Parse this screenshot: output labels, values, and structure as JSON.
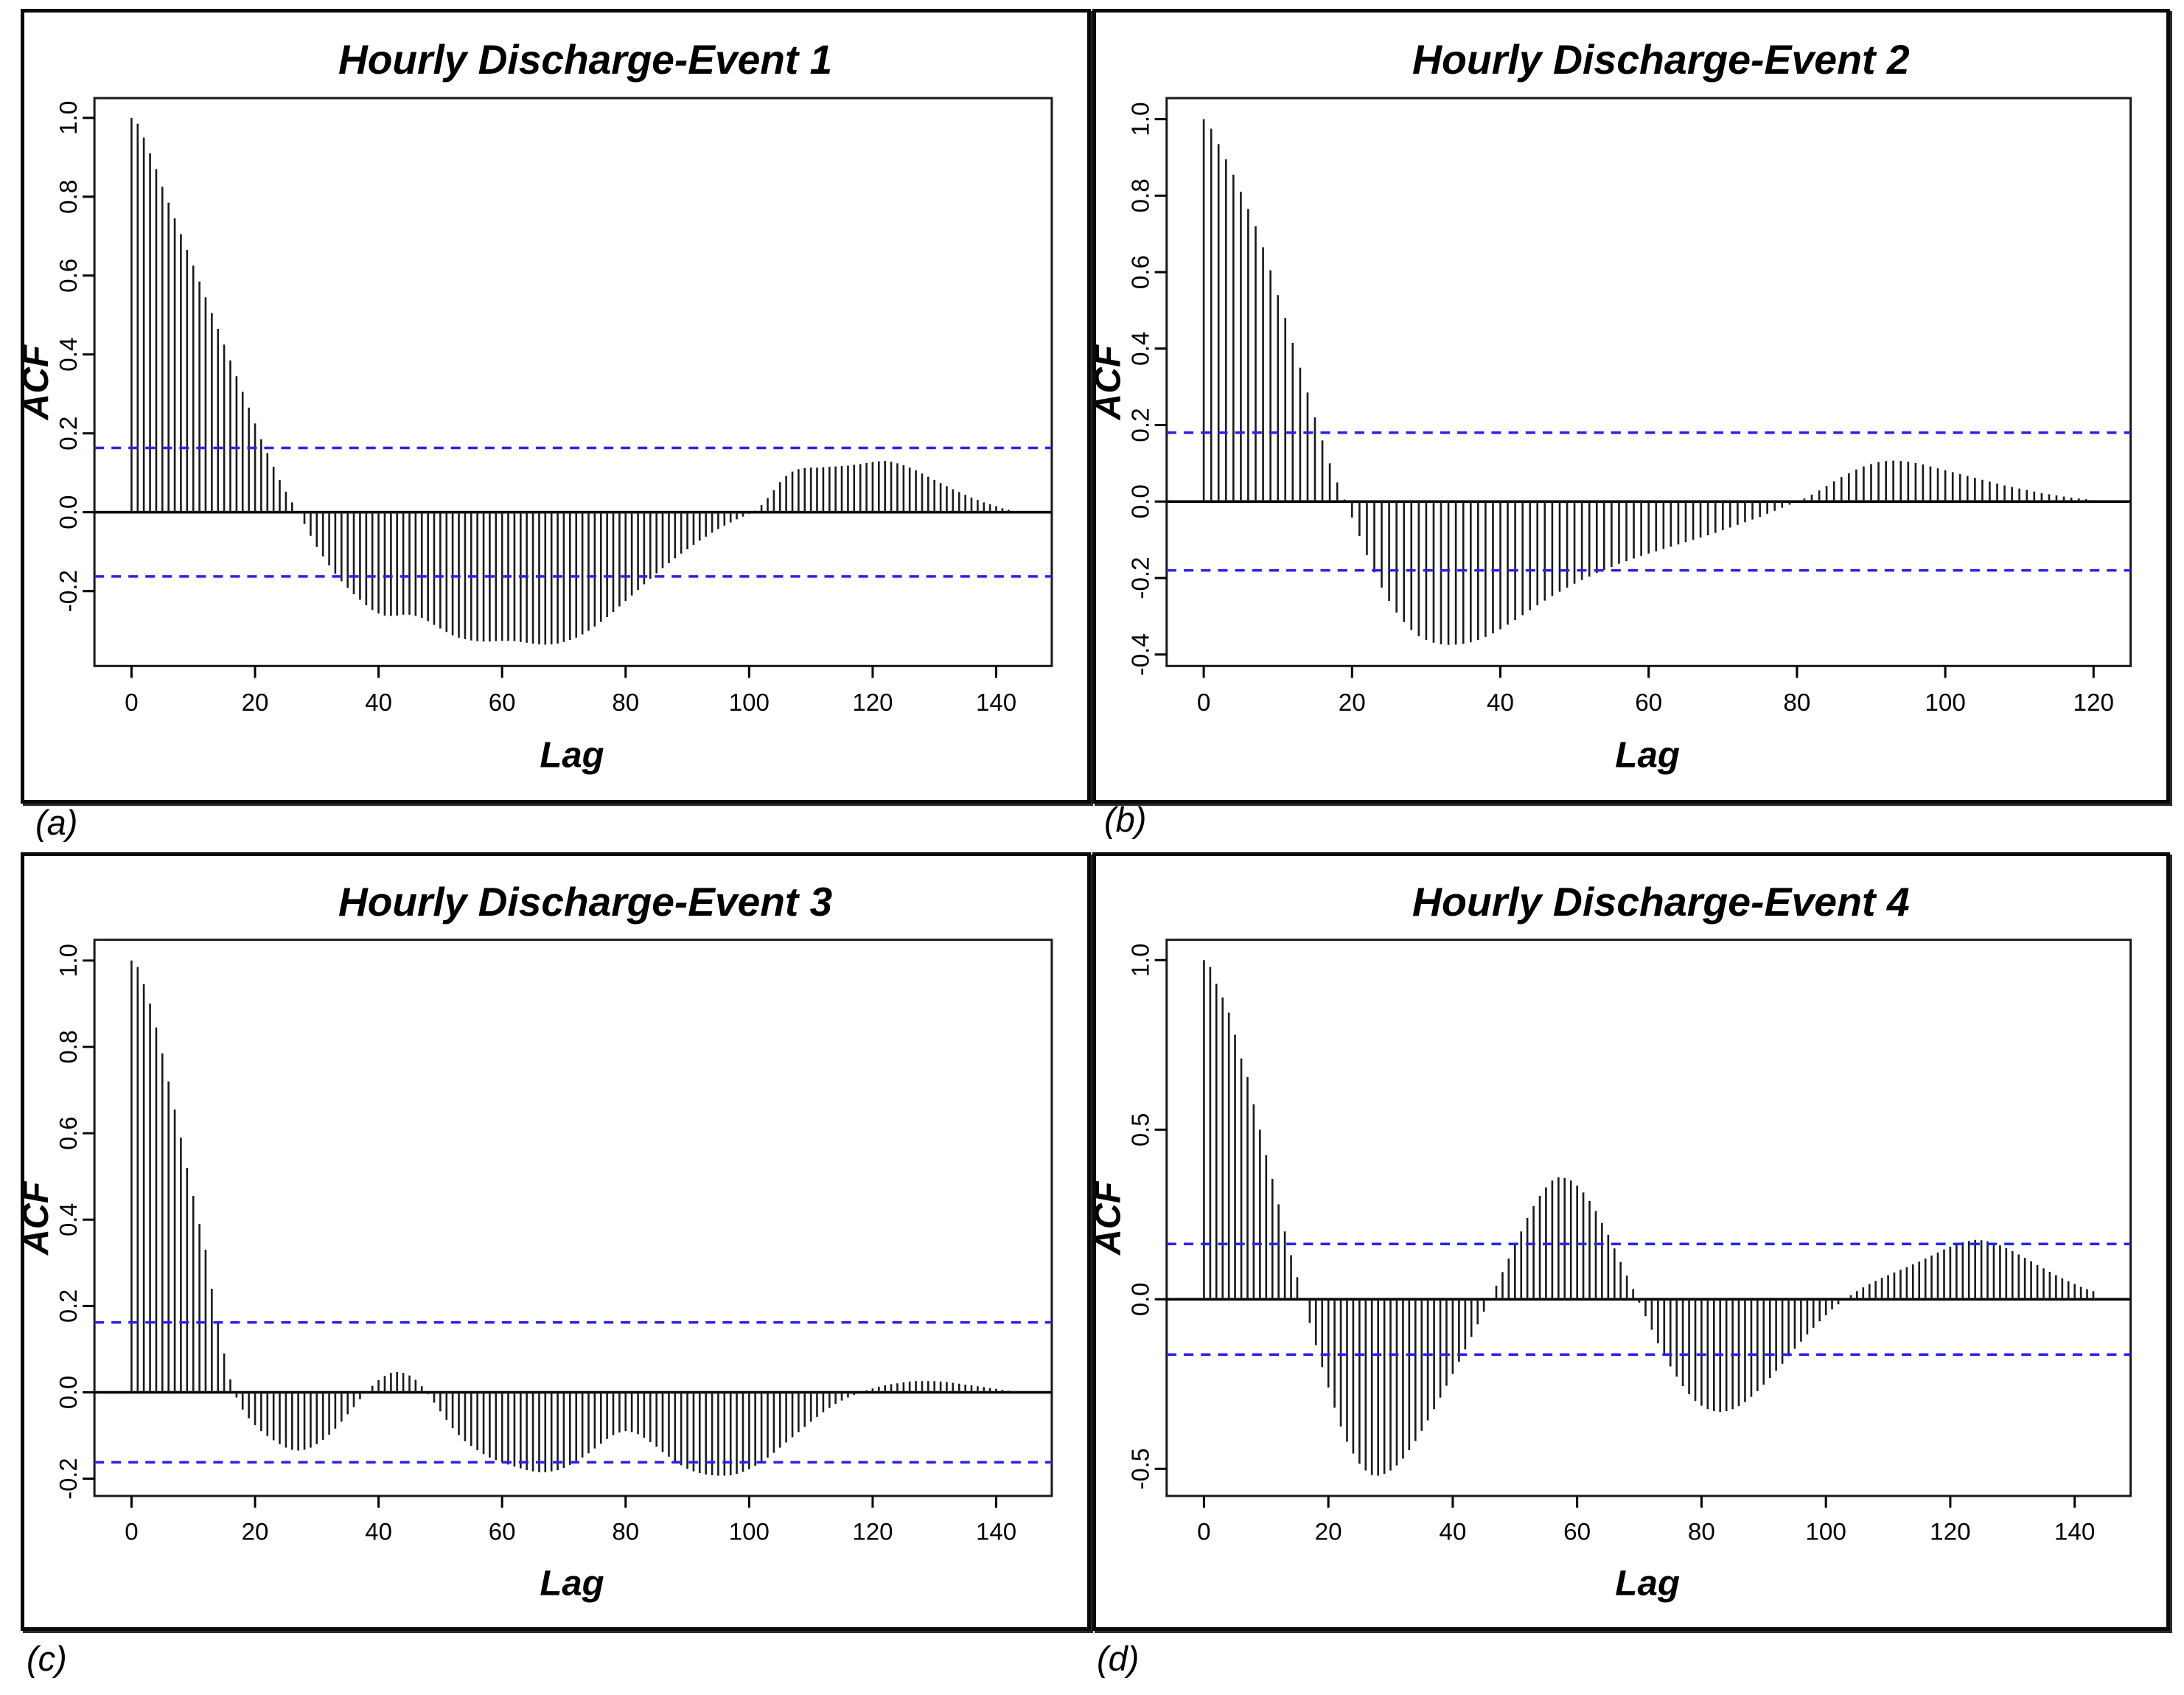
{
  "figure_title": "",
  "styles": {
    "bar_color": "#1b1b1b",
    "conf_band_color": "#2424f0",
    "zero_line_color": "#000000",
    "frame_color": "#1a1a1a",
    "tick_color": "#000000",
    "background": "#ffffff"
  },
  "chart_data": [
    {
      "type": "bar",
      "id": "a",
      "corner_label": "(a)",
      "title": "Hourly Discharge-Event 1",
      "xlabel": "Lag",
      "ylabel": "ACF",
      "x_ticks": [
        0,
        20,
        40,
        60,
        80,
        100,
        120,
        140
      ],
      "y_ticks": [
        1.0,
        0.8,
        0.6,
        0.4,
        0.2,
        0.0,
        -0.2
      ],
      "xlim": [
        -6,
        149
      ],
      "ylim": [
        -0.39,
        1.05
      ],
      "conf_band": 0.163,
      "lag_start": 0,
      "lag_step": 1,
      "values": [
        1.0,
        0.985,
        0.95,
        0.91,
        0.87,
        0.825,
        0.785,
        0.745,
        0.705,
        0.665,
        0.625,
        0.585,
        0.545,
        0.505,
        0.465,
        0.425,
        0.385,
        0.345,
        0.305,
        0.265,
        0.225,
        0.185,
        0.15,
        0.115,
        0.082,
        0.052,
        0.025,
        0.0,
        -0.03,
        -0.06,
        -0.088,
        -0.112,
        -0.135,
        -0.156,
        -0.175,
        -0.192,
        -0.208,
        -0.222,
        -0.236,
        -0.248,
        -0.257,
        -0.262,
        -0.263,
        -0.262,
        -0.26,
        -0.26,
        -0.263,
        -0.268,
        -0.276,
        -0.286,
        -0.295,
        -0.304,
        -0.312,
        -0.318,
        -0.322,
        -0.325,
        -0.327,
        -0.328,
        -0.328,
        -0.327,
        -0.326,
        -0.326,
        -0.327,
        -0.329,
        -0.331,
        -0.333,
        -0.335,
        -0.336,
        -0.335,
        -0.333,
        -0.329,
        -0.324,
        -0.318,
        -0.31,
        -0.301,
        -0.29,
        -0.278,
        -0.266,
        -0.253,
        -0.239,
        -0.225,
        -0.211,
        -0.197,
        -0.183,
        -0.169,
        -0.155,
        -0.142,
        -0.129,
        -0.117,
        -0.105,
        -0.094,
        -0.083,
        -0.072,
        -0.062,
        -0.052,
        -0.043,
        -0.034,
        -0.026,
        -0.018,
        -0.011,
        -0.004,
        0.004,
        0.018,
        0.036,
        0.056,
        0.076,
        0.092,
        0.103,
        0.109,
        0.112,
        0.113,
        0.113,
        0.114,
        0.115,
        0.116,
        0.117,
        0.118,
        0.12,
        0.122,
        0.125,
        0.127,
        0.129,
        0.13,
        0.128,
        0.124,
        0.119,
        0.113,
        0.106,
        0.098,
        0.09,
        0.082,
        0.074,
        0.066,
        0.058,
        0.051,
        0.044,
        0.037,
        0.031,
        0.025,
        0.02,
        0.015,
        0.01,
        0.006,
        0.003
      ]
    },
    {
      "type": "bar",
      "id": "b",
      "corner_label": "(b)",
      "title": "Hourly Discharge-Event 2",
      "xlabel": "Lag",
      "ylabel": "ACF",
      "x_ticks": [
        0,
        20,
        40,
        60,
        80,
        100,
        120
      ],
      "y_ticks": [
        1.0,
        0.8,
        0.6,
        0.4,
        0.2,
        0.0,
        -0.2,
        -0.4
      ],
      "xlim": [
        -5,
        125
      ],
      "ylim": [
        -0.43,
        1.055
      ],
      "conf_band": 0.18,
      "lag_start": 0,
      "lag_step": 1,
      "values": [
        1.0,
        0.975,
        0.935,
        0.895,
        0.855,
        0.81,
        0.765,
        0.72,
        0.665,
        0.605,
        0.54,
        0.48,
        0.415,
        0.35,
        0.285,
        0.22,
        0.16,
        0.1,
        0.05,
        0.005,
        -0.042,
        -0.09,
        -0.14,
        -0.185,
        -0.225,
        -0.26,
        -0.29,
        -0.315,
        -0.336,
        -0.352,
        -0.362,
        -0.369,
        -0.373,
        -0.375,
        -0.374,
        -0.372,
        -0.368,
        -0.362,
        -0.354,
        -0.345,
        -0.334,
        -0.322,
        -0.31,
        -0.297,
        -0.284,
        -0.271,
        -0.259,
        -0.247,
        -0.236,
        -0.225,
        -0.215,
        -0.205,
        -0.196,
        -0.187,
        -0.179,
        -0.171,
        -0.163,
        -0.156,
        -0.149,
        -0.142,
        -0.136,
        -0.13,
        -0.124,
        -0.118,
        -0.112,
        -0.106,
        -0.1,
        -0.094,
        -0.088,
        -0.082,
        -0.075,
        -0.068,
        -0.061,
        -0.054,
        -0.047,
        -0.04,
        -0.032,
        -0.024,
        -0.016,
        -0.008,
        0.0,
        0.008,
        0.018,
        0.029,
        0.041,
        0.053,
        0.064,
        0.074,
        0.084,
        0.092,
        0.098,
        0.103,
        0.106,
        0.107,
        0.106,
        0.104,
        0.101,
        0.097,
        0.092,
        0.087,
        0.082,
        0.077,
        0.072,
        0.067,
        0.062,
        0.057,
        0.052,
        0.047,
        0.042,
        0.038,
        0.034,
        0.03,
        0.026,
        0.022,
        0.019,
        0.016,
        0.013,
        0.01,
        0.008,
        0.006,
        0.004
      ]
    },
    {
      "type": "bar",
      "id": "c",
      "corner_label": "(c)",
      "title": "Hourly Discharge-Event 3",
      "xlabel": "Lag",
      "ylabel": "ACF",
      "x_ticks": [
        0,
        20,
        40,
        60,
        80,
        100,
        120,
        140
      ],
      "y_ticks": [
        1.0,
        0.8,
        0.6,
        0.4,
        0.2,
        0.0,
        -0.2
      ],
      "xlim": [
        -6,
        149
      ],
      "ylim": [
        -0.24,
        1.048
      ],
      "conf_band": 0.162,
      "lag_start": 0,
      "lag_step": 1,
      "values": [
        1.0,
        0.985,
        0.945,
        0.9,
        0.845,
        0.785,
        0.72,
        0.655,
        0.59,
        0.52,
        0.455,
        0.39,
        0.33,
        0.24,
        0.16,
        0.09,
        0.03,
        -0.012,
        -0.04,
        -0.06,
        -0.076,
        -0.09,
        -0.101,
        -0.111,
        -0.12,
        -0.128,
        -0.133,
        -0.135,
        -0.133,
        -0.128,
        -0.12,
        -0.11,
        -0.098,
        -0.084,
        -0.068,
        -0.051,
        -0.034,
        -0.016,
        0.001,
        0.015,
        0.028,
        0.038,
        0.045,
        0.047,
        0.045,
        0.039,
        0.029,
        0.014,
        -0.004,
        -0.024,
        -0.044,
        -0.064,
        -0.083,
        -0.099,
        -0.113,
        -0.124,
        -0.134,
        -0.143,
        -0.151,
        -0.157,
        -0.162,
        -0.167,
        -0.172,
        -0.176,
        -0.18,
        -0.183,
        -0.185,
        -0.185,
        -0.183,
        -0.18,
        -0.175,
        -0.168,
        -0.16,
        -0.151,
        -0.141,
        -0.13,
        -0.119,
        -0.108,
        -0.099,
        -0.093,
        -0.09,
        -0.092,
        -0.097,
        -0.105,
        -0.115,
        -0.126,
        -0.138,
        -0.149,
        -0.16,
        -0.169,
        -0.177,
        -0.183,
        -0.187,
        -0.19,
        -0.192,
        -0.193,
        -0.193,
        -0.192,
        -0.189,
        -0.184,
        -0.178,
        -0.17,
        -0.161,
        -0.151,
        -0.14,
        -0.128,
        -0.116,
        -0.104,
        -0.092,
        -0.08,
        -0.068,
        -0.057,
        -0.046,
        -0.036,
        -0.027,
        -0.019,
        -0.012,
        -0.006,
        0.0,
        0.005,
        0.009,
        0.013,
        0.016,
        0.019,
        0.021,
        0.023,
        0.025,
        0.026,
        0.026,
        0.026,
        0.026,
        0.025,
        0.024,
        0.022,
        0.02,
        0.018,
        0.016,
        0.014,
        0.012,
        0.01,
        0.008,
        0.006,
        0.004,
        0.003
      ]
    },
    {
      "type": "bar",
      "id": "d",
      "corner_label": "(d)",
      "title": "Hourly Discharge-Event 4",
      "xlabel": "Lag",
      "ylabel": "ACF",
      "x_ticks": [
        0,
        20,
        40,
        60,
        80,
        100,
        120,
        140
      ],
      "y_ticks": [
        1.0,
        0.5,
        0.0,
        -0.5
      ],
      "xlim": [
        -6,
        149
      ],
      "ylim": [
        -0.58,
        1.06
      ],
      "conf_band": 0.163,
      "lag_start": 0,
      "lag_step": 1,
      "values": [
        1.0,
        0.98,
        0.93,
        0.89,
        0.845,
        0.78,
        0.71,
        0.655,
        0.575,
        0.5,
        0.425,
        0.355,
        0.28,
        0.2,
        0.13,
        0.065,
        0.0,
        -0.07,
        -0.135,
        -0.2,
        -0.26,
        -0.32,
        -0.375,
        -0.42,
        -0.455,
        -0.485,
        -0.505,
        -0.518,
        -0.52,
        -0.515,
        -0.505,
        -0.49,
        -0.47,
        -0.445,
        -0.418,
        -0.388,
        -0.357,
        -0.324,
        -0.29,
        -0.255,
        -0.22,
        -0.184,
        -0.148,
        -0.111,
        -0.074,
        -0.037,
        0.0,
        0.04,
        0.08,
        0.12,
        0.16,
        0.2,
        0.24,
        0.275,
        0.305,
        0.33,
        0.35,
        0.36,
        0.358,
        0.35,
        0.335,
        0.315,
        0.29,
        0.26,
        0.225,
        0.19,
        0.15,
        0.11,
        0.07,
        0.03,
        -0.01,
        -0.05,
        -0.09,
        -0.13,
        -0.165,
        -0.198,
        -0.228,
        -0.256,
        -0.28,
        -0.3,
        -0.314,
        -0.324,
        -0.33,
        -0.332,
        -0.33,
        -0.324,
        -0.315,
        -0.303,
        -0.288,
        -0.271,
        -0.252,
        -0.232,
        -0.211,
        -0.19,
        -0.168,
        -0.146,
        -0.125,
        -0.104,
        -0.084,
        -0.065,
        -0.047,
        -0.03,
        -0.015,
        -0.001,
        0.012,
        0.024,
        0.035,
        0.045,
        0.054,
        0.063,
        0.071,
        0.079,
        0.087,
        0.095,
        0.103,
        0.111,
        0.12,
        0.129,
        0.138,
        0.147,
        0.155,
        0.162,
        0.168,
        0.172,
        0.175,
        0.174,
        0.171,
        0.166,
        0.159,
        0.151,
        0.142,
        0.132,
        0.122,
        0.112,
        0.101,
        0.091,
        0.081,
        0.071,
        0.062,
        0.053,
        0.045,
        0.037,
        0.03,
        0.024
      ]
    }
  ]
}
